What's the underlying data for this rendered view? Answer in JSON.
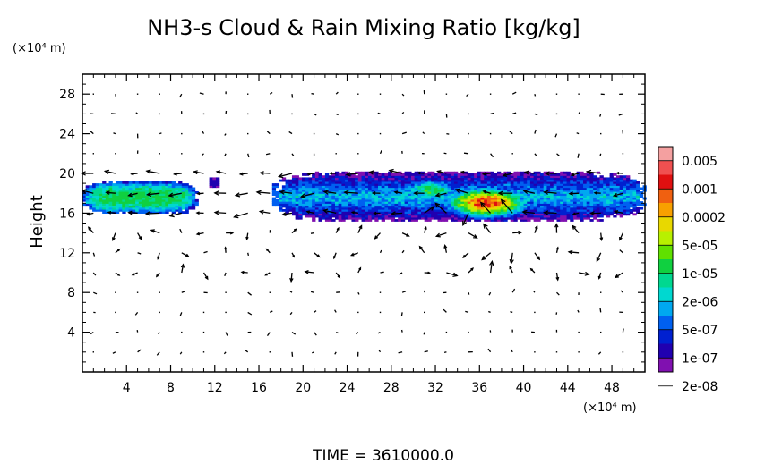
{
  "chart_data": {
    "type": "heatmap",
    "title": "NH3-s Cloud & Rain Mixing Ratio [kg/kg]",
    "ylabel": "Height",
    "y_unit": "(×10⁴ m)",
    "x_unit": "(×10⁴ m)",
    "footer": "TIME = 3610000.0",
    "xlim": [
      0,
      51
    ],
    "ylim": [
      0,
      30
    ],
    "x_ticks": [
      4,
      8,
      12,
      16,
      20,
      24,
      28,
      32,
      36,
      40,
      44,
      48
    ],
    "x_tick_labels": [
      "4",
      "8",
      "12",
      "16",
      "20",
      "24",
      "28",
      "32",
      "36",
      "40",
      "44",
      "48"
    ],
    "y_ticks": [
      4,
      8,
      12,
      16,
      20,
      24,
      28
    ],
    "y_tick_labels": [
      "4",
      "8",
      "12",
      "16",
      "20",
      "24",
      "28"
    ],
    "colorbar": {
      "labels": [
        "0.005",
        "0.001",
        "0.0002",
        "5e-05",
        "1e-05",
        "2e-06",
        "5e-07",
        "1e-07",
        "2e-08"
      ],
      "colors_top_to_bottom": [
        "#f4a0a0",
        "#f05050",
        "#e01010",
        "#f06010",
        "#f8a000",
        "#e8d800",
        "#b8f000",
        "#60e000",
        "#10d040",
        "#00d890",
        "#00d8d0",
        "#00a8f0",
        "#0060f0",
        "#0020d0",
        "#2000b0",
        "#8010b0"
      ]
    },
    "cloud_regions": [
      {
        "name": "left",
        "x": [
          0.0,
          10.4
        ],
        "y": [
          16.0,
          19.2
        ],
        "peak_level": "1e-05"
      },
      {
        "name": "small",
        "x": [
          11.5,
          12.5
        ],
        "y": [
          18.6,
          19.6
        ],
        "peak_level": "1e-06"
      },
      {
        "name": "main",
        "x": [
          17.2,
          51.0
        ],
        "y": [
          15.2,
          20.2
        ],
        "peak_level": "0.001",
        "peak_x": 36.5,
        "peak_y": 17.0
      }
    ],
    "wind_field": "arrows"
  }
}
